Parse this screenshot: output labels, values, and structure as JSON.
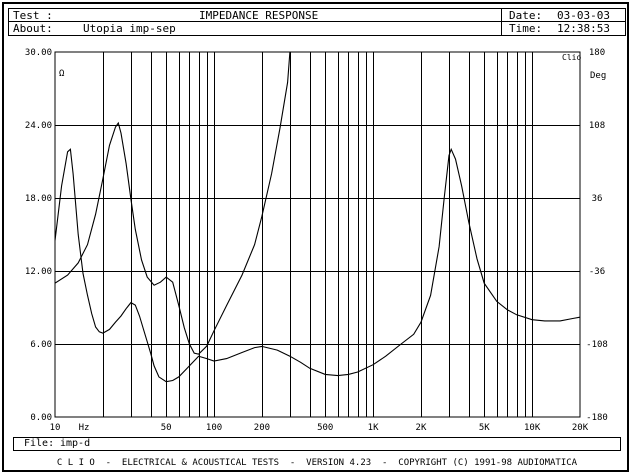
{
  "header": {
    "test_label": "Test :",
    "title": "IMPEDANCE RESPONSE",
    "about_label": "About:",
    "about_value": "Utopia imp-sep",
    "date_label": "Date:",
    "date_value": "03-03-03",
    "time_label": "Time:",
    "time_value": "12:38:53"
  },
  "file": {
    "label": "File:",
    "value": "imp-d"
  },
  "footer": {
    "text": "C L I O  -  ELECTRICAL & ACOUSTICAL TESTS  -  VERSION 4.23  -  COPYRIGHT (C) 1991-98 AUDIOMATICA"
  },
  "chart_data": {
    "type": "line",
    "brand": "Clio",
    "x_scale": "log",
    "xlim": [
      10,
      20000
    ],
    "x_tick_labels": [
      {
        "x": 10,
        "label": "10"
      },
      {
        "x": 20,
        "label": "Hz"
      },
      {
        "x": 50,
        "label": "50"
      },
      {
        "x": 100,
        "label": "100"
      },
      {
        "x": 200,
        "label": "200"
      },
      {
        "x": 500,
        "label": "500"
      },
      {
        "x": 1000,
        "label": "1K"
      },
      {
        "x": 2000,
        "label": "2K"
      },
      {
        "x": 5000,
        "label": "5K"
      },
      {
        "x": 10000,
        "label": "10K"
      },
      {
        "x": 20000,
        "label": "20K"
      }
    ],
    "y_left": {
      "unit": "Ω",
      "ylim": [
        0,
        30
      ],
      "ticks": [
        "30.00",
        "24.00",
        "18.00",
        "12.00",
        "6.00",
        "0.00"
      ]
    },
    "y_right": {
      "unit": "Deg",
      "ylim": [
        -180,
        180
      ],
      "ticks": [
        "180",
        "108",
        "36",
        "-36",
        "-108",
        "-180"
      ]
    },
    "grid": true,
    "series": [
      {
        "axis": "left",
        "points": [
          [
            10,
            14.5
          ],
          [
            11,
            19
          ],
          [
            12,
            21.8
          ],
          [
            12.5,
            22
          ],
          [
            13,
            20
          ],
          [
            14,
            15
          ],
          [
            15,
            11.8
          ],
          [
            16,
            10
          ],
          [
            17,
            8.5
          ],
          [
            18,
            7.4
          ],
          [
            19,
            7
          ],
          [
            20,
            6.9
          ],
          [
            22,
            7.2
          ],
          [
            24,
            7.8
          ],
          [
            26,
            8.3
          ],
          [
            28,
            8.9
          ],
          [
            30,
            9.4
          ],
          [
            32,
            9.2
          ],
          [
            34,
            8.3
          ],
          [
            36,
            7.2
          ],
          [
            38,
            6.2
          ],
          [
            40,
            5.2
          ],
          [
            42,
            4.2
          ],
          [
            45,
            3.3
          ],
          [
            50,
            2.9
          ],
          [
            55,
            3
          ],
          [
            60,
            3.3
          ],
          [
            70,
            4.2
          ],
          [
            80,
            5
          ],
          [
            90,
            4.8
          ],
          [
            100,
            4.6
          ],
          [
            120,
            4.8
          ],
          [
            150,
            5.3
          ],
          [
            180,
            5.7
          ],
          [
            200,
            5.8
          ],
          [
            250,
            5.5
          ],
          [
            300,
            5
          ],
          [
            350,
            4.5
          ],
          [
            400,
            4
          ],
          [
            500,
            3.5
          ],
          [
            600,
            3.4
          ],
          [
            700,
            3.5
          ],
          [
            800,
            3.7
          ],
          [
            1000,
            4.3
          ],
          [
            1200,
            5
          ],
          [
            1500,
            6
          ],
          [
            1800,
            6.8
          ],
          [
            2000,
            7.8
          ],
          [
            2300,
            10
          ],
          [
            2600,
            14
          ],
          [
            2800,
            18
          ],
          [
            3000,
            21.5
          ],
          [
            3100,
            22
          ],
          [
            3300,
            21.2
          ],
          [
            3600,
            19
          ],
          [
            4000,
            16
          ],
          [
            4500,
            13
          ],
          [
            5000,
            11
          ],
          [
            6000,
            9.5
          ],
          [
            7000,
            8.8
          ],
          [
            8000,
            8.4
          ],
          [
            10000,
            8
          ],
          [
            12000,
            7.9
          ],
          [
            15000,
            7.9
          ],
          [
            18000,
            8.1
          ],
          [
            20000,
            8.2
          ]
        ]
      },
      {
        "axis": "right",
        "points": [
          [
            10,
            -48
          ],
          [
            12,
            -40
          ],
          [
            14,
            -28
          ],
          [
            16,
            -10
          ],
          [
            18,
            20
          ],
          [
            20,
            55
          ],
          [
            22,
            88
          ],
          [
            24,
            106
          ],
          [
            25,
            110
          ],
          [
            26,
            100
          ],
          [
            28,
            70
          ],
          [
            30,
            35
          ],
          [
            32,
            5
          ],
          [
            35,
            -25
          ],
          [
            38,
            -42
          ],
          [
            42,
            -50
          ],
          [
            46,
            -47
          ],
          [
            50,
            -42
          ],
          [
            55,
            -47
          ],
          [
            60,
            -70
          ],
          [
            65,
            -92
          ],
          [
            70,
            -108
          ],
          [
            75,
            -117
          ],
          [
            80,
            -118
          ],
          [
            90,
            -110
          ],
          [
            100,
            -95
          ],
          [
            120,
            -70
          ],
          [
            150,
            -40
          ],
          [
            180,
            -10
          ],
          [
            200,
            18
          ],
          [
            230,
            60
          ],
          [
            260,
            105
          ],
          [
            290,
            150
          ],
          [
            300,
            180
          ]
        ]
      }
    ]
  }
}
